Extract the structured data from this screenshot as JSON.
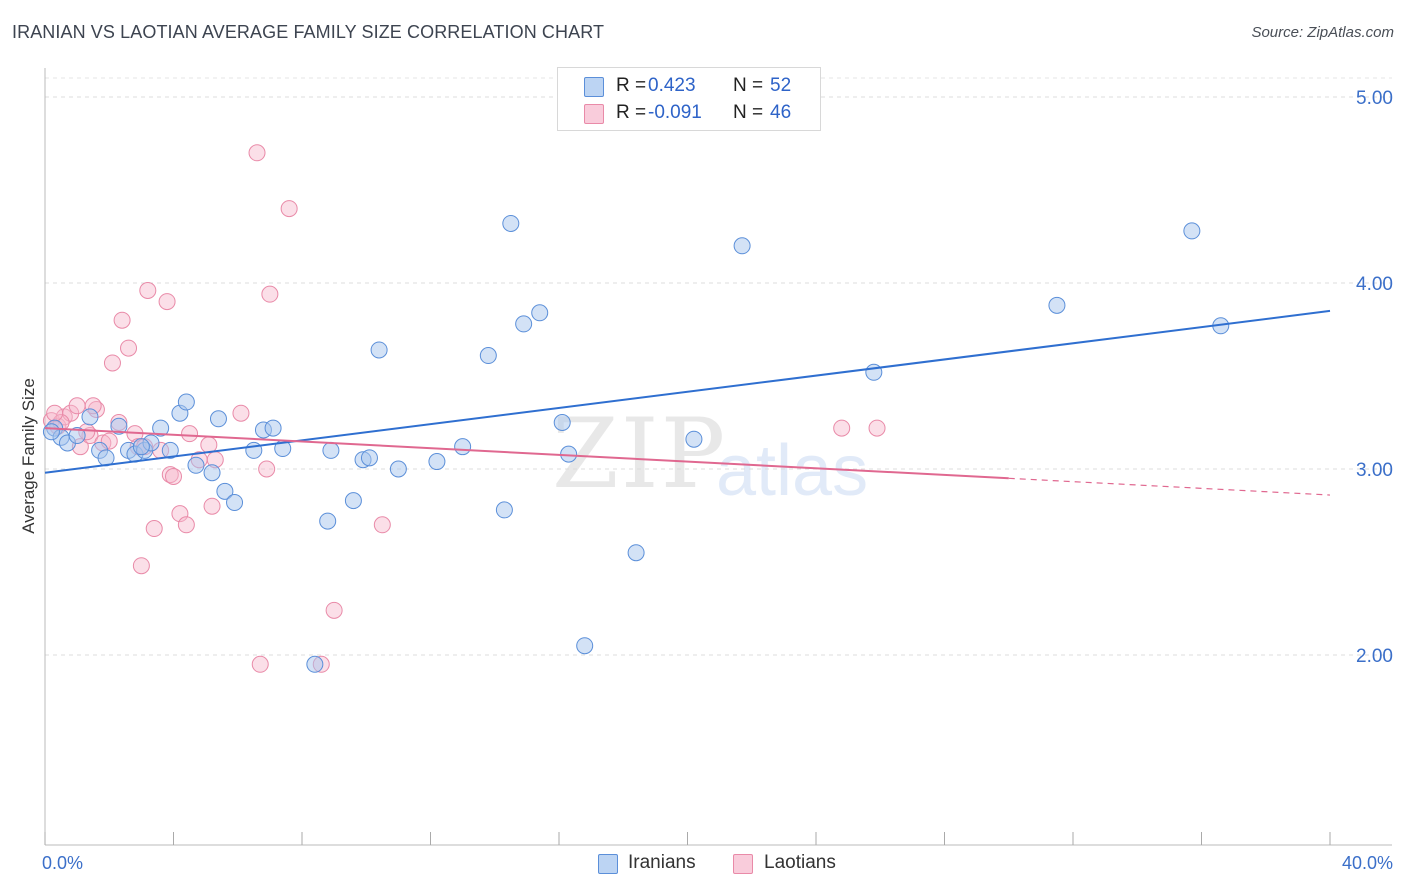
{
  "title": "IRANIAN VS LAOTIAN AVERAGE FAMILY SIZE CORRELATION CHART",
  "source": "Source: ZipAtlas.com",
  "watermark": {
    "part1": "ZIP",
    "part2": "atlas"
  },
  "legend": {
    "rows": [
      {
        "r_label": "R =",
        "r_value": "0.423",
        "n_label": "N =",
        "n_value": "52"
      },
      {
        "r_label": "R =",
        "r_value": "-0.091",
        "n_label": "N =",
        "n_value": "46"
      }
    ]
  },
  "bottom_legend": {
    "series1": "Iranians",
    "series2": "Laotians"
  },
  "colors": {
    "blue_fill": "#a8c6ee",
    "blue_stroke": "#5b8fd9",
    "blue_line": "#2f6fd0",
    "pink_fill": "#f6b8cc",
    "pink_stroke": "#e98aa8",
    "pink_line": "#e06890",
    "tick_color": "#3b6fc9"
  },
  "chart_data": {
    "type": "scatter",
    "xlabel": "",
    "ylabel": "Average Family Size",
    "xlim": [
      0,
      40
    ],
    "ylim": [
      1.0,
      5.15
    ],
    "x_tick_labels": [
      "0.0%",
      "40.0%"
    ],
    "y_ticks": [
      2.0,
      3.0,
      4.0,
      5.0
    ],
    "y_tick_labels": [
      "2.00",
      "3.00",
      "4.00",
      "5.00"
    ],
    "grid": "dashed horizontal",
    "legend_position": "top-center",
    "series": [
      {
        "name": "Iranians",
        "r": 0.423,
        "n": 52,
        "trend": {
          "x": [
            0,
            40
          ],
          "y": [
            2.98,
            3.85
          ]
        },
        "points": [
          [
            0.3,
            3.22
          ],
          [
            0.5,
            3.17
          ],
          [
            0.7,
            3.14
          ],
          [
            1.0,
            3.18
          ],
          [
            1.4,
            3.28
          ],
          [
            1.7,
            3.1
          ],
          [
            1.9,
            3.06
          ],
          [
            2.3,
            3.23
          ],
          [
            2.6,
            3.1
          ],
          [
            2.8,
            3.08
          ],
          [
            3.1,
            3.1
          ],
          [
            3.3,
            3.14
          ],
          [
            3.6,
            3.22
          ],
          [
            3.9,
            3.1
          ],
          [
            4.2,
            3.3
          ],
          [
            4.4,
            3.36
          ],
          [
            4.7,
            3.02
          ],
          [
            5.2,
            2.98
          ],
          [
            5.4,
            3.27
          ],
          [
            5.6,
            2.88
          ],
          [
            5.9,
            2.82
          ],
          [
            6.5,
            3.1
          ],
          [
            6.8,
            3.21
          ],
          [
            7.1,
            3.22
          ],
          [
            7.4,
            3.11
          ],
          [
            8.8,
            2.72
          ],
          [
            8.4,
            1.95
          ],
          [
            8.9,
            3.1
          ],
          [
            9.6,
            2.83
          ],
          [
            9.9,
            3.05
          ],
          [
            10.1,
            3.06
          ],
          [
            10.4,
            3.64
          ],
          [
            11.0,
            3.0
          ],
          [
            12.2,
            3.04
          ],
          [
            13.0,
            3.12
          ],
          [
            13.8,
            3.61
          ],
          [
            14.3,
            2.78
          ],
          [
            14.5,
            4.32
          ],
          [
            14.9,
            3.78
          ],
          [
            15.4,
            3.84
          ],
          [
            16.1,
            3.25
          ],
          [
            16.3,
            3.08
          ],
          [
            16.8,
            2.05
          ],
          [
            18.4,
            2.55
          ],
          [
            20.2,
            3.16
          ],
          [
            21.7,
            4.2
          ],
          [
            25.8,
            3.52
          ],
          [
            31.5,
            3.88
          ],
          [
            35.7,
            4.28
          ],
          [
            36.6,
            3.77
          ],
          [
            3.0,
            3.12
          ],
          [
            0.2,
            3.2
          ]
        ]
      },
      {
        "name": "Laotians",
        "r": -0.091,
        "n": 46,
        "trend": {
          "x": [
            0,
            30
          ],
          "y": [
            3.22,
            2.95
          ]
        },
        "trend_dashed": {
          "x": [
            30,
            40
          ],
          "y": [
            2.95,
            2.86
          ]
        },
        "points": [
          [
            0.2,
            3.26
          ],
          [
            0.4,
            3.23
          ],
          [
            0.6,
            3.28
          ],
          [
            0.8,
            3.3
          ],
          [
            1.0,
            3.34
          ],
          [
            1.1,
            3.12
          ],
          [
            1.4,
            3.18
          ],
          [
            1.6,
            3.32
          ],
          [
            1.8,
            3.14
          ],
          [
            2.1,
            3.57
          ],
          [
            2.3,
            3.25
          ],
          [
            2.4,
            3.8
          ],
          [
            2.6,
            3.65
          ],
          [
            2.8,
            3.19
          ],
          [
            2.9,
            3.12
          ],
          [
            3.0,
            2.48
          ],
          [
            3.1,
            3.12
          ],
          [
            3.2,
            3.96
          ],
          [
            3.4,
            2.68
          ],
          [
            3.6,
            3.1
          ],
          [
            3.8,
            3.9
          ],
          [
            3.9,
            2.97
          ],
          [
            4.0,
            2.96
          ],
          [
            4.2,
            2.76
          ],
          [
            4.4,
            2.7
          ],
          [
            4.5,
            3.19
          ],
          [
            4.8,
            3.05
          ],
          [
            5.1,
            3.13
          ],
          [
            5.2,
            2.8
          ],
          [
            5.3,
            3.05
          ],
          [
            6.1,
            3.3
          ],
          [
            6.6,
            4.7
          ],
          [
            6.7,
            1.95
          ],
          [
            6.9,
            3.0
          ],
          [
            7.0,
            3.94
          ],
          [
            7.6,
            4.4
          ],
          [
            8.6,
            1.95
          ],
          [
            9.0,
            2.24
          ],
          [
            10.5,
            2.7
          ],
          [
            24.8,
            3.22
          ],
          [
            25.9,
            3.22
          ],
          [
            0.5,
            3.25
          ],
          [
            1.3,
            3.2
          ],
          [
            0.3,
            3.3
          ],
          [
            2.0,
            3.15
          ],
          [
            1.5,
            3.34
          ]
        ]
      }
    ]
  }
}
